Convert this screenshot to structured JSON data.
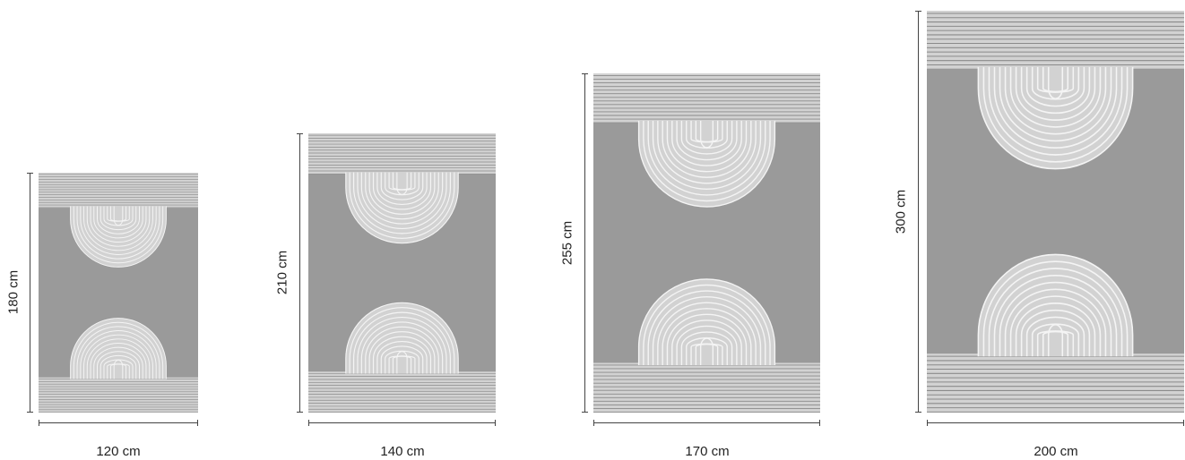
{
  "sizes": [
    {
      "width_label": "120 cm",
      "height_label": "180 cm"
    },
    {
      "width_label": "140 cm",
      "height_label": "210 cm"
    },
    {
      "width_label": "170 cm",
      "height_label": "255 cm"
    },
    {
      "width_label": "200 cm",
      "height_label": "300 cm"
    }
  ],
  "colors": {
    "band": "#9a9a9a",
    "stripe_bg": "#d2d2d2",
    "stripe_line": "#8a8a8a",
    "arch_line": "#f4f4f4",
    "dimension_line": "#444444"
  }
}
